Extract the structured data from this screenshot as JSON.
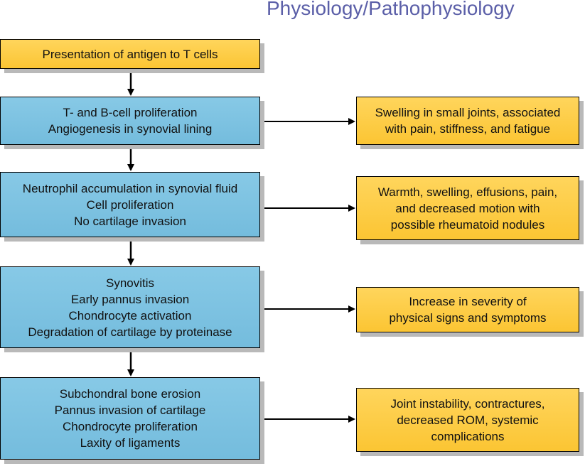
{
  "header": {
    "title": "Physiology/Pathophysiology"
  },
  "flow": {
    "stages": [
      {
        "lines": [
          "Presentation of antigen to T cells"
        ]
      },
      {
        "lines": [
          "T- and B-cell proliferation",
          "Angiogenesis in synovial lining"
        ]
      },
      {
        "lines": [
          "Neutrophil accumulation in synovial fluid",
          "Cell proliferation",
          "No cartilage invasion"
        ]
      },
      {
        "lines": [
          "Synovitis",
          "Early pannus invasion",
          "Chondrocyte activation",
          "Degradation of cartilage by proteinase"
        ]
      },
      {
        "lines": [
          "Subchondral bone erosion",
          "Pannus invasion of cartilage",
          "Chondrocyte proliferation",
          "Laxity of ligaments"
        ]
      }
    ],
    "outcomes": [
      {
        "lines": [
          "Swelling in small joints, associated",
          "with pain, stiffness, and fatigue"
        ]
      },
      {
        "lines": [
          "Warmth, swelling, effusions, pain,",
          "and decreased motion with",
          "possible rheumatoid nodules"
        ]
      },
      {
        "lines": [
          "Increase in severity of",
          "physical signs and symptoms"
        ]
      },
      {
        "lines": [
          "Joint instability, contractures,",
          "decreased ROM, systemic",
          "complications"
        ]
      }
    ]
  },
  "colors": {
    "stage_fill": "#7cc2e2",
    "outcome_fill": "#fdcc45",
    "first_stage_fill": "#fdcc45",
    "title_color": "#5b5fa8",
    "arrow_color": "#000000"
  }
}
